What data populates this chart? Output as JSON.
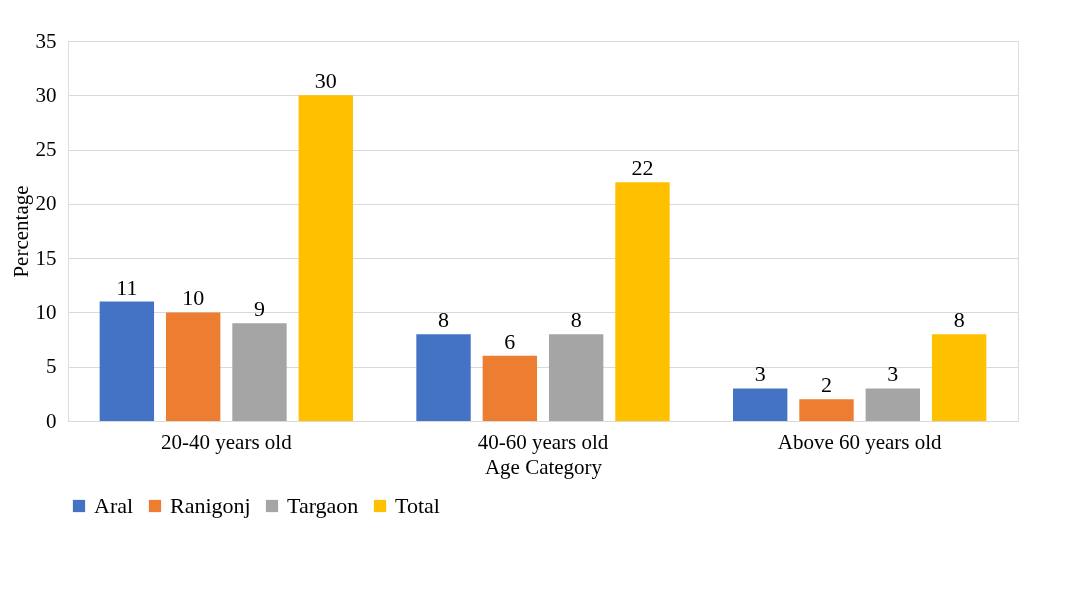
{
  "chart_data": {
    "type": "bar",
    "xlabel": "Age Category",
    "ylabel": "Percentage",
    "categories": [
      "20-40 years old",
      "40-60 years old",
      "Above 60 years old"
    ],
    "series": [
      {
        "name": "Aral",
        "color": "#4472c4",
        "values": [
          11,
          8,
          3
        ]
      },
      {
        "name": "Ranigonj",
        "color": "#ed7d31",
        "values": [
          10,
          6,
          2
        ]
      },
      {
        "name": "Targaon",
        "color": "#a5a5a5",
        "values": [
          9,
          8,
          3
        ]
      },
      {
        "name": "Total",
        "color": "#ffc000",
        "values": [
          30,
          22,
          8
        ]
      }
    ],
    "ylim": [
      0,
      35
    ],
    "yticks": [
      0,
      5,
      10,
      15,
      20,
      25,
      30,
      35
    ],
    "grid": "y",
    "legend": "bottom",
    "data_labels": true
  }
}
